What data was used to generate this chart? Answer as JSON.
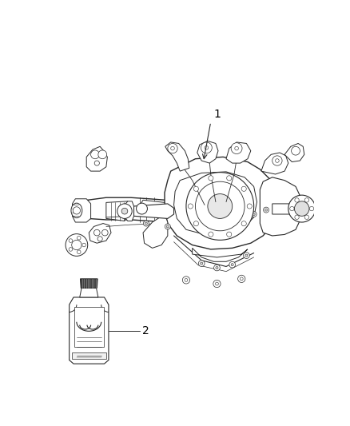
{
  "background_color": "#ffffff",
  "line_color": "#2a2a2a",
  "label_color": "#000000",
  "fig_width": 4.38,
  "fig_height": 5.33,
  "dpi": 100,
  "label1_text": "1",
  "label2_text": "2",
  "font_size": 10,
  "lw": 0.7
}
